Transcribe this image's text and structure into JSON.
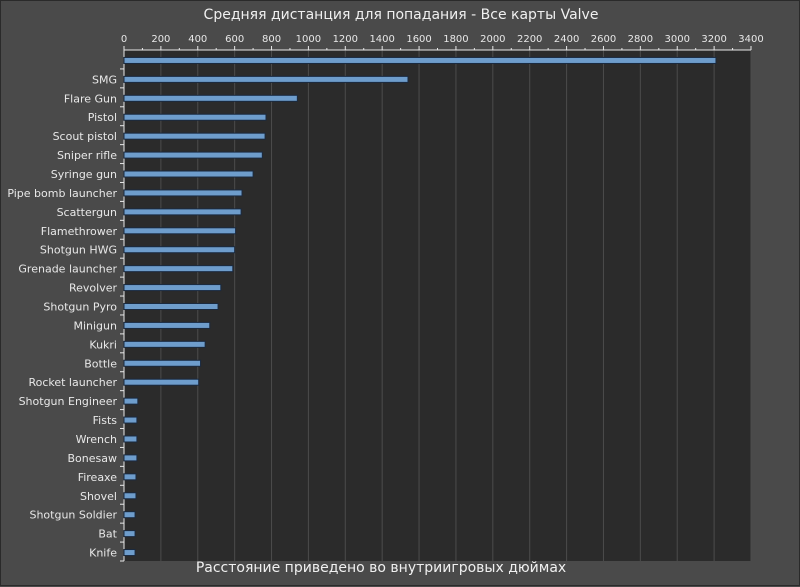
{
  "chart_data": {
    "type": "bar",
    "orientation": "horizontal",
    "title": "Средняя дистанция для попадания - Все карты Valve",
    "xlabel": "Расстояние приведено во внутриигровых дюймах",
    "ylabel": "",
    "xlim": [
      0,
      3400
    ],
    "x_ticks": [
      0,
      200,
      400,
      600,
      800,
      1000,
      1200,
      1400,
      1600,
      1800,
      2000,
      2200,
      2400,
      2600,
      2800,
      3000,
      3200,
      3400
    ],
    "x_axis_position": "top",
    "grid": true,
    "categories": [
      "",
      "SMG",
      "Flare Gun",
      "Pistol",
      "Scout pistol",
      "Sniper rifle",
      "Syringe gun",
      "Pipe bomb launcher",
      "Scattergun",
      "Flamethrower",
      "Shotgun HWG",
      "Grenade launcher",
      "Revolver",
      "Shotgun Pyro",
      "Minigun",
      "Kukri",
      "Bottle",
      "Rocket launcher",
      "Shotgun Engineer",
      "Fists",
      "Wrench",
      "Bonesaw",
      "Fireaxe",
      "Shovel",
      "Shotgun Soldier",
      "Bat",
      "Knife"
    ],
    "values": [
      3210,
      1540,
      940,
      770,
      765,
      750,
      700,
      640,
      635,
      605,
      600,
      590,
      525,
      510,
      465,
      440,
      415,
      405,
      75,
      70,
      70,
      70,
      65,
      65,
      60,
      60,
      60
    ],
    "colors": {
      "background": "#4a4a4a",
      "plot_background": "#2b2b2b",
      "grid": "#4c4c4c",
      "bar_fill": "#6e9dcc",
      "bar_edge": "#1a2a40",
      "text": "#e8e8e8"
    }
  }
}
